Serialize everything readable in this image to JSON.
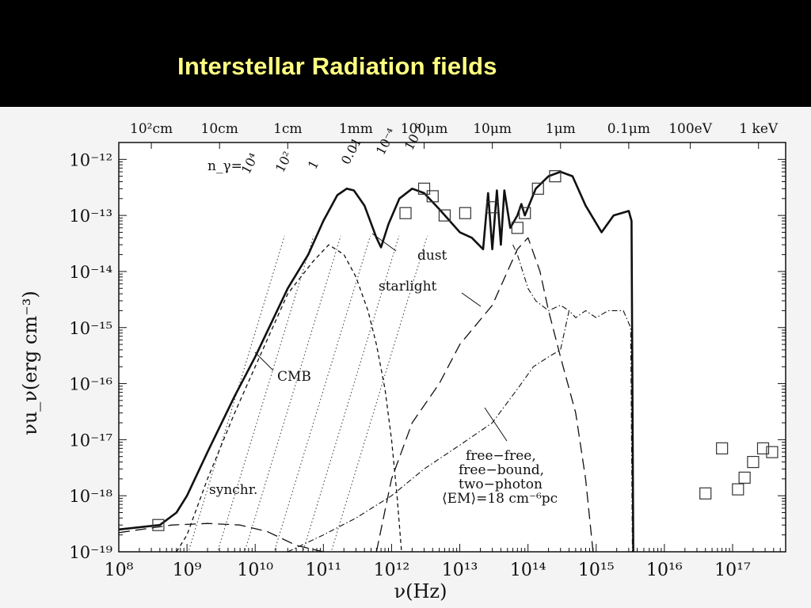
{
  "slide": {
    "title": "Interstellar Radiation fields",
    "title_color": "#ffff80"
  },
  "chart_data": {
    "type": "line",
    "title": "Interstellar Radiation fields",
    "x_axis": {
      "label": "ν(Hz)",
      "scale": "log",
      "range_hz": [
        100000000.0,
        6e+17
      ],
      "tick_labels": [
        "10⁸",
        "10⁹",
        "10¹⁰",
        "10¹¹",
        "10¹²",
        "10¹³",
        "10¹⁴",
        "10¹⁵",
        "10¹⁶",
        "10¹⁷"
      ],
      "tick_values": [
        100000000.0,
        1000000000.0,
        10000000000.0,
        100000000000.0,
        1000000000000.0,
        10000000000000.0,
        100000000000000.0,
        1000000000000000.0,
        1e+16,
        1e+17
      ]
    },
    "y_axis": {
      "label": "νu_ν(erg cm⁻³)",
      "scale": "log",
      "range": [
        1e-19,
        2e-12
      ],
      "tick_labels": [
        "10⁻¹²",
        "10⁻¹³",
        "10⁻¹⁴",
        "10⁻¹⁵",
        "10⁻¹⁶",
        "10⁻¹⁷",
        "10⁻¹⁸",
        "10⁻¹⁹"
      ],
      "tick_values": [
        1e-12,
        1e-13,
        1e-14,
        1e-15,
        1e-16,
        1e-17,
        1e-18,
        1e-19
      ]
    },
    "top_axis_labels": [
      {
        "text": "10²cm",
        "nu": 300000000.0
      },
      {
        "text": "10cm",
        "nu": 3000000000.0
      },
      {
        "text": "1cm",
        "nu": 30000000000.0
      },
      {
        "text": "1mm",
        "nu": 300000000000.0
      },
      {
        "text": "100μm",
        "nu": 3000000000000.0
      },
      {
        "text": "10μm",
        "nu": 30000000000000.0
      },
      {
        "text": "1μm",
        "nu": 300000000000000.0
      },
      {
        "text": "0.1μm",
        "nu": 3000000000000000.0
      },
      {
        "text": "100eV",
        "nu": 2.4e+16
      },
      {
        "text": "1 keV",
        "nu": 2.4e+17
      }
    ],
    "photon_density_label": "n_γ=",
    "photon_density_lines": [
      {
        "label": "10⁴",
        "n": 10000.0
      },
      {
        "label": "10²",
        "n": 100.0
      },
      {
        "label": "1",
        "n": 1
      },
      {
        "label": "0.01",
        "n": 0.01
      },
      {
        "label": "10⁻⁴",
        "n": 0.0001
      },
      {
        "label": "10⁻⁶",
        "n": 1e-06
      }
    ],
    "series": [
      {
        "name": "CMB",
        "style": "solid-thick",
        "points": [
          [
            100000000.0,
            2.5e-19
          ],
          [
            400000000.0,
            3e-19
          ],
          [
            700000000.0,
            5e-19
          ],
          [
            1000000000.0,
            1e-18
          ],
          [
            2000000000.0,
            6e-18
          ],
          [
            5000000000.0,
            6e-17
          ],
          [
            10000000000.0,
            3e-16
          ],
          [
            30000000000.0,
            5e-15
          ],
          [
            60000000000.0,
            2e-14
          ],
          [
            100000000000.0,
            8e-14
          ],
          [
            160000000000.0,
            2.3e-13
          ],
          [
            220000000000.0,
            3e-13
          ],
          [
            280000000000.0,
            2.8e-13
          ],
          [
            400000000000.0,
            1.5e-13
          ],
          [
            600000000000.0,
            4e-14
          ],
          [
            700000000000.0,
            2.7e-14
          ],
          [
            900000000000.0,
            7e-14
          ],
          [
            1300000000000.0,
            2e-13
          ],
          [
            2000000000000.0,
            3e-13
          ],
          [
            3000000000000.0,
            2.5e-13
          ],
          [
            5000000000000.0,
            1.3e-13
          ],
          [
            10000000000000.0,
            5e-14
          ],
          [
            15000000000000.0,
            4e-14
          ],
          [
            22000000000000.0,
            2.5e-14
          ],
          [
            26000000000000.0,
            2.5e-13
          ],
          [
            30000000000000.0,
            2.5e-14
          ],
          [
            35000000000000.0,
            2.8e-13
          ],
          [
            40000000000000.0,
            3e-14
          ],
          [
            45000000000000.0,
            2.8e-13
          ],
          [
            55000000000000.0,
            6e-14
          ],
          [
            70000000000000.0,
            1e-13
          ],
          [
            80000000000000.0,
            1.6e-13
          ],
          [
            90000000000000.0,
            1e-13
          ],
          [
            130000000000000.0,
            3e-13
          ],
          [
            200000000000000.0,
            5e-13
          ],
          [
            300000000000000.0,
            6e-13
          ],
          [
            450000000000000.0,
            5e-13
          ],
          [
            700000000000000.0,
            1.5e-13
          ],
          [
            1200000000000000.0,
            5e-14
          ],
          [
            1800000000000000.0,
            1e-13
          ],
          [
            3000000000000000.0,
            1.2e-13
          ],
          [
            3300000000000000.0,
            8e-14
          ],
          [
            3500000000000000.0,
            1e-19
          ]
        ]
      },
      {
        "name": "synchr.",
        "style": "long-dash",
        "points": [
          [
            100000000.0,
            2.2e-19
          ],
          [
            600000000.0,
            3e-19
          ],
          [
            2000000000.0,
            3.2e-19
          ],
          [
            6000000000.0,
            3e-19
          ],
          [
            15000000000.0,
            2.3e-19
          ],
          [
            40000000000.0,
            1.3e-19
          ],
          [
            100000000000.0,
            1e-19
          ]
        ]
      },
      {
        "name": "dust",
        "style": "short-dash",
        "points": [
          [
            700000000.0,
            1e-19
          ],
          [
            1000000000.0,
            2e-19
          ],
          [
            2000000000.0,
            2e-18
          ],
          [
            5000000000.0,
            3e-17
          ],
          [
            10000000000.0,
            2e-16
          ],
          [
            30000000000.0,
            4e-15
          ],
          [
            70000000000.0,
            1.5e-14
          ],
          [
            120000000000.0,
            3e-14
          ],
          [
            200000000000.0,
            2e-14
          ],
          [
            300000000000.0,
            8e-15
          ],
          [
            450000000000.0,
            2e-15
          ],
          [
            600000000000.0,
            5e-16
          ],
          [
            800000000000.0,
            8e-17
          ],
          [
            1000000000000.0,
            1e-17
          ],
          [
            1200000000000.0,
            1e-18
          ],
          [
            1400000000000.0,
            1e-19
          ]
        ]
      },
      {
        "name": "starlight",
        "style": "long-dash",
        "points": [
          [
            600000000000.0,
            1e-19
          ],
          [
            1000000000000.0,
            2e-18
          ],
          [
            2000000000000.0,
            2e-17
          ],
          [
            5000000000000.0,
            1e-16
          ],
          [
            10000000000000.0,
            5e-16
          ],
          [
            30000000000000.0,
            2.5e-15
          ],
          [
            50000000000000.0,
            1e-14
          ],
          [
            70000000000000.0,
            2.5e-14
          ],
          [
            100000000000000.0,
            4e-14
          ],
          [
            150000000000000.0,
            1e-14
          ],
          [
            200000000000000.0,
            2e-15
          ],
          [
            300000000000000.0,
            3e-16
          ],
          [
            500000000000000.0,
            3e-17
          ],
          [
            700000000000000.0,
            2e-18
          ],
          [
            900000000000000.0,
            1e-19
          ]
        ]
      },
      {
        "name": "free−free, free−bound, two−photon",
        "style": "dash-dot",
        "points": [
          [
            30000000000.0,
            1e-19
          ],
          [
            100000000000.0,
            2e-19
          ],
          [
            300000000000.0,
            4e-19
          ],
          [
            1000000000000.0,
            1e-18
          ],
          [
            3000000000000.0,
            3e-18
          ],
          [
            10000000000000.0,
            8e-18
          ],
          [
            30000000000000.0,
            2e-17
          ],
          [
            70000000000000.0,
            8e-17
          ],
          [
            120000000000000.0,
            2e-16
          ],
          [
            200000000000000.0,
            3e-16
          ],
          [
            300000000000000.0,
            4e-16
          ],
          [
            400000000000000.0,
            2e-15
          ],
          [
            500000000000000.0,
            1.5e-15
          ],
          [
            700000000000000.0,
            2e-15
          ],
          [
            1000000000000000.0,
            1.5e-15
          ],
          [
            1500000000000000.0,
            2e-15
          ],
          [
            2500000000000000.0,
            2e-15
          ],
          [
            3200000000000000.0,
            1e-15
          ],
          [
            3400000000000000.0,
            1e-19
          ]
        ]
      },
      {
        "name": "EM annotation curve",
        "style": "dash-dot",
        "points": [
          [
            60000000000000.0,
            3e-14
          ],
          [
            70000000000000.0,
            2e-14
          ],
          [
            100000000000000.0,
            5e-15
          ],
          [
            130000000000000.0,
            3e-15
          ],
          [
            200000000000000.0,
            2e-15
          ],
          [
            300000000000000.0,
            2.5e-15
          ],
          [
            400000000000000.0,
            2e-15
          ]
        ]
      }
    ],
    "observations": {
      "marker": "square",
      "points": [
        [
          380000000.0,
          3e-19
        ],
        [
          1600000000000.0,
          1.1e-13
        ],
        [
          3000000000000.0,
          3e-13
        ],
        [
          4000000000000.0,
          2.2e-13
        ],
        [
          6000000000000.0,
          1e-13
        ],
        [
          12000000000000.0,
          1.1e-13
        ],
        [
          30000000000000.0,
          1.4e-13
        ],
        [
          70000000000000.0,
          6e-14
        ],
        [
          90000000000000.0,
          1.1e-13
        ],
        [
          140000000000000.0,
          3e-13
        ],
        [
          250000000000000.0,
          5e-13
        ],
        [
          4e+16,
          1.1e-18
        ],
        [
          7e+16,
          7e-18
        ],
        [
          1.2e+17,
          1.3e-18
        ],
        [
          1.5e+17,
          2.1e-18
        ],
        [
          2e+17,
          4e-18
        ],
        [
          2.8e+17,
          7e-18
        ],
        [
          3.8e+17,
          6e-18
        ]
      ]
    },
    "annotations": [
      {
        "id": "cmb",
        "text": "CMB"
      },
      {
        "id": "synchr",
        "text": "synchr."
      },
      {
        "id": "dust",
        "text": "dust"
      },
      {
        "id": "starlight",
        "text": "starlight"
      },
      {
        "id": "ff1",
        "text": "free−free,"
      },
      {
        "id": "ff2",
        "text": "free−bound,"
      },
      {
        "id": "ff3",
        "text": "two−photon"
      },
      {
        "id": "ff4",
        "text": "⟨EM⟩=18 cm⁻⁶pc"
      }
    ],
    "grid": false,
    "legend": "none"
  }
}
